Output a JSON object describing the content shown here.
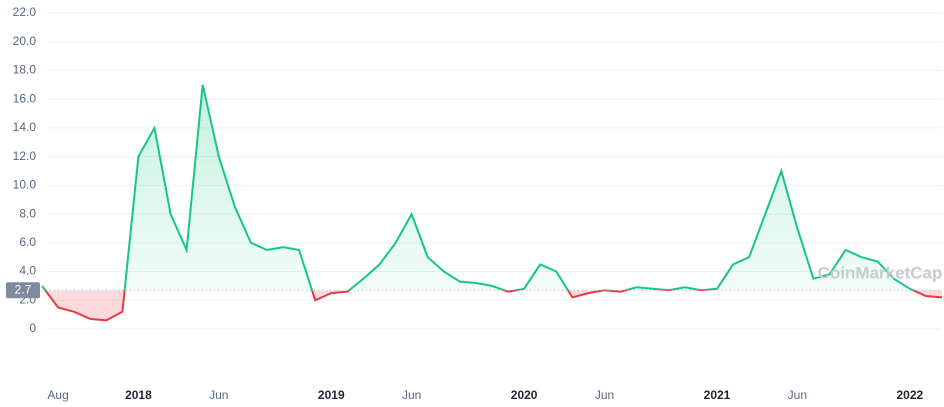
{
  "chart_data": {
    "type": "line",
    "x": [
      "2017-07",
      "2017-08",
      "2017-09",
      "2017-10",
      "2017-11",
      "2017-12",
      "2018-01",
      "2018-02",
      "2018-03",
      "2018-04",
      "2018-05",
      "2018-06",
      "2018-07",
      "2018-08",
      "2018-09",
      "2018-10",
      "2018-11",
      "2018-12",
      "2019-01",
      "2019-02",
      "2019-03",
      "2019-04",
      "2019-05",
      "2019-06",
      "2019-07",
      "2019-08",
      "2019-09",
      "2019-10",
      "2019-11",
      "2019-12",
      "2020-01",
      "2020-02",
      "2020-03",
      "2020-04",
      "2020-05",
      "2020-06",
      "2020-07",
      "2020-08",
      "2020-09",
      "2020-10",
      "2020-11",
      "2020-12",
      "2021-01",
      "2021-02",
      "2021-03",
      "2021-04",
      "2021-05",
      "2021-06",
      "2021-07",
      "2021-08",
      "2021-09",
      "2021-10",
      "2021-11",
      "2021-12",
      "2022-01",
      "2022-02",
      "2022-03"
    ],
    "values": [
      3.0,
      1.5,
      1.2,
      0.7,
      0.6,
      1.2,
      12.0,
      14.0,
      8.0,
      5.5,
      17.0,
      12.0,
      8.5,
      6.0,
      5.5,
      5.7,
      5.5,
      2.0,
      2.5,
      2.6,
      3.5,
      4.5,
      6.0,
      8.0,
      5.0,
      4.0,
      3.3,
      3.2,
      3.0,
      2.6,
      2.8,
      4.5,
      4.0,
      2.2,
      2.5,
      2.7,
      2.6,
      2.9,
      2.8,
      2.7,
      2.9,
      2.7,
      2.8,
      4.5,
      5.0,
      8.0,
      11.0,
      7.0,
      3.5,
      3.8,
      5.5,
      5.0,
      4.7,
      3.5,
      2.8,
      2.3,
      2.2
    ],
    "reference": {
      "value": 2.7,
      "label": "2.7"
    },
    "up_color": "#16c784",
    "down_color": "#ea3943",
    "ylim": [
      0,
      22
    ],
    "yticks": [
      0,
      {
        "value": 2,
        "label": "2.0"
      },
      {
        "value": 4,
        "label": "4.0"
      },
      {
        "value": 6,
        "label": "6.0"
      },
      {
        "value": 8,
        "label": "8.0"
      },
      {
        "value": 10,
        "label": "10.0"
      },
      {
        "value": 12,
        "label": "12.0"
      },
      {
        "value": 14,
        "label": "14.0"
      },
      {
        "value": 16,
        "label": "16.0"
      },
      {
        "value": 18,
        "label": "18.0"
      },
      {
        "value": 20,
        "label": "20.0"
      },
      {
        "value": 22,
        "label": "22.0"
      }
    ],
    "xlim": [
      "2017-07",
      "2022-03"
    ],
    "xticks": [
      {
        "value": "2017-08",
        "label": "Aug"
      },
      {
        "value": "2018-01",
        "label": "2018"
      },
      {
        "value": "2018-06",
        "label": "Jun"
      },
      {
        "value": "2019-01",
        "label": "2019"
      },
      {
        "value": "2019-06",
        "label": "Jun"
      },
      {
        "value": "2020-01",
        "label": "2020"
      },
      {
        "value": "2020-06",
        "label": "Jun"
      },
      {
        "value": "2021-01",
        "label": "2021"
      },
      {
        "value": "2021-06",
        "label": "Jun"
      },
      {
        "value": "2022-01",
        "label": "2022"
      }
    ],
    "grid": true,
    "watermark": "CoinMarketCap"
  }
}
